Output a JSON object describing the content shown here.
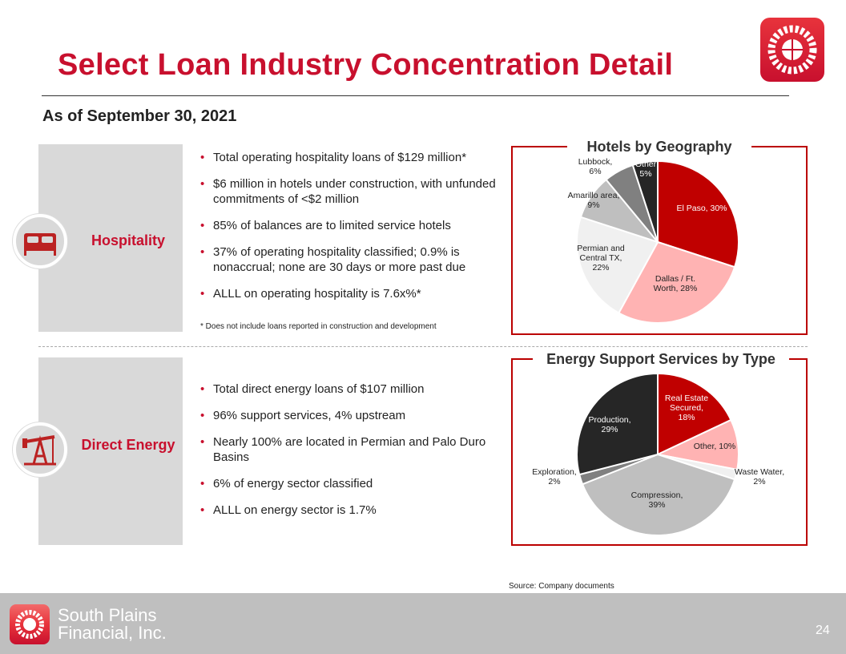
{
  "header": {
    "title": "Select Loan Industry Concentration Detail",
    "as_of": "As of September 30, 2021"
  },
  "hospitality": {
    "label": "Hospitality",
    "bullets": [
      "Total operating hospitality loans of $129 million*",
      "$6 million in hotels under construction, with unfunded commitments of <$2 million",
      "85% of balances are to limited service hotels",
      "37% of operating hospitality classified; 0.9% is nonaccrual; none are 30 days or more past due",
      "ALLL on operating hospitality is 7.6x%*"
    ],
    "note": "*   Does not include loans reported in construction and development"
  },
  "energy": {
    "label": "Direct Energy",
    "bullets": [
      "Total direct energy loans of $107 million",
      "96% support services, 4% upstream",
      "Nearly 100% are located in Permian and Palo Duro Basins",
      "6% of energy sector classified",
      "ALLL on energy sector is 1.7%"
    ]
  },
  "chart_data": [
    {
      "type": "pie",
      "title": "Hotels by Geography",
      "categories": [
        "El Paso",
        "Dallas / Ft. Worth",
        "Permian and Central TX",
        "Amarillo area",
        "Lubbock",
        "Other"
      ],
      "values": [
        30,
        28,
        22,
        9,
        6,
        5
      ],
      "labels": [
        [
          "El Paso, 30%"
        ],
        [
          "Dallas / Ft.",
          "Worth, 28%"
        ],
        [
          "Permian  and",
          "Central TX,",
          "22%"
        ],
        [
          "Amarillo area,",
          "9%"
        ],
        [
          "Lubbock,",
          "6%"
        ],
        [
          "Other",
          "5%"
        ]
      ],
      "colors": [
        "#c00000",
        "#ffb3b3",
        "#f0f0f0",
        "#bfbfbf",
        "#808080",
        "#262626"
      ],
      "label_colors": [
        "#fff",
        "#222",
        "#222",
        "#222",
        "#222",
        "#fff"
      ]
    },
    {
      "type": "pie",
      "title": "Energy Support Services by Type",
      "categories": [
        "Real Estate Secured",
        "Other",
        "Waste Water",
        "Compression",
        "Exploration",
        "Production"
      ],
      "values": [
        18,
        10,
        2,
        39,
        2,
        29
      ],
      "labels": [
        [
          "Real Estate",
          "Secured,",
          "18%"
        ],
        [
          "Other, 10%"
        ],
        [
          "Waste Water,",
          "2%"
        ],
        [
          "Compression,",
          "39%"
        ],
        [
          "Exploration,",
          "2%"
        ],
        [
          "Production,",
          "29%"
        ]
      ],
      "colors": [
        "#c00000",
        "#ffb3b3",
        "#f0f0f0",
        "#bfbfbf",
        "#808080",
        "#262626"
      ],
      "label_colors": [
        "#fff",
        "#222",
        "#222",
        "#222",
        "#222",
        "#fff"
      ]
    }
  ],
  "footer": {
    "source": "Source: Company documents",
    "company_line1": "South Plains",
    "company_line2": "Financial, Inc.",
    "page": "24"
  },
  "colors": {
    "accent": "#c8102e",
    "panel": "#d9d9d9",
    "footer": "#bfbfbf"
  }
}
